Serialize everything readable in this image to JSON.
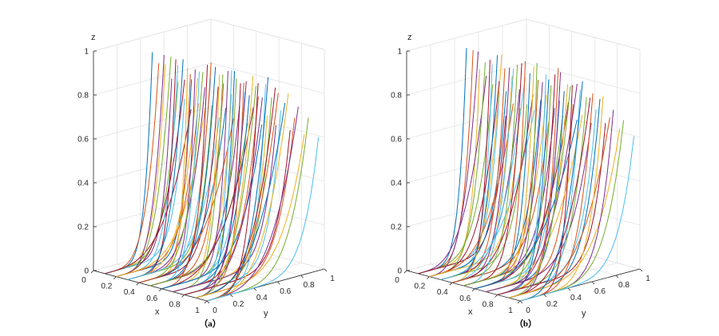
{
  "chart_data": [
    {
      "type": "line",
      "projection": "3d",
      "caption": "（a）",
      "xlabel": "x",
      "ylabel": "y",
      "zlabel": "z",
      "xlim": [
        0,
        1
      ],
      "ylim": [
        0,
        1
      ],
      "zlim": [
        0,
        1
      ],
      "x_ticks": [
        "0",
        "0.2",
        "0.4",
        "0.6",
        "0.8",
        "1"
      ],
      "y_ticks": [
        "0",
        "0.2",
        "0.4",
        "0.6",
        "0.8",
        "1"
      ],
      "z_ticks": [
        "0",
        "0.2",
        "0.4",
        "0.6",
        "0.8",
        "1"
      ],
      "grid": true,
      "x_values": [
        0.1,
        0.2,
        0.3,
        0.4,
        0.5,
        0.6,
        0.7,
        0.8,
        0.9,
        1.0
      ],
      "curves_per_x": 7,
      "curve_end_z": [
        0.99,
        0.96,
        0.92,
        0.87,
        0.81,
        0.74,
        0.66
      ]
    },
    {
      "type": "line",
      "projection": "3d",
      "caption": "（b）",
      "xlabel": "x",
      "ylabel": "y",
      "zlabel": "z",
      "xlim": [
        0,
        1
      ],
      "ylim": [
        0,
        1
      ],
      "zlim": [
        0,
        1
      ],
      "x_ticks": [
        "0",
        "0.2",
        "0.4",
        "0.6",
        "0.8",
        "1"
      ],
      "y_ticks": [
        "0",
        "0.2",
        "0.4",
        "0.6",
        "0.8",
        "1"
      ],
      "z_ticks": [
        "0",
        "0.2",
        "0.4",
        "0.6",
        "0.8",
        "1"
      ],
      "grid": true,
      "x_values": [
        0.1,
        0.2,
        0.3,
        0.4,
        0.5,
        0.6,
        0.7,
        0.8,
        0.9,
        1.0
      ],
      "curves_per_x": 7,
      "curve_end_z": [
        0.99,
        0.96,
        0.92,
        0.87,
        0.81,
        0.74,
        0.66
      ]
    }
  ],
  "colors": [
    "#0072BD",
    "#D95319",
    "#EDB120",
    "#7E2F8E",
    "#77AC30",
    "#4DBEEE",
    "#A2142F"
  ]
}
